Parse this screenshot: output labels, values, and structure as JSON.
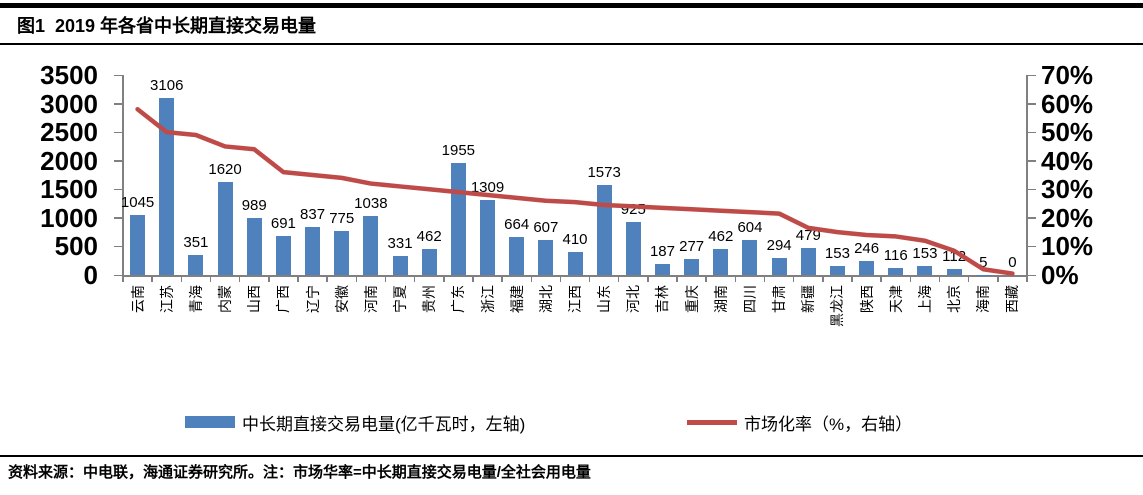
{
  "header": {
    "title": "图1  2019 年各省中长期直接交易电量"
  },
  "legend": {
    "bar_label": "中长期直接交易电量(亿千瓦时，左轴)",
    "line_label": "市场化率（%，右轴）"
  },
  "footer": {
    "text": "资料来源：中电联，海通证券研究所。注：市场华率=中长期直接交易电量/全社会用电量"
  },
  "colors": {
    "bar": "#4F81BD",
    "line": "#BE4B48",
    "axis": "#808080",
    "text": "#000000"
  },
  "chart_data": {
    "type": "bar",
    "subtype": "bar+line combo, dual axis",
    "categories": [
      "云南",
      "江苏",
      "青海",
      "内蒙",
      "山西",
      "广西",
      "辽宁",
      "安徽",
      "河南",
      "宁夏",
      "贵州",
      "广东",
      "浙江",
      "福建",
      "湖北",
      "江西",
      "山东",
      "河北",
      "吉林",
      "重庆",
      "湖南",
      "四川",
      "甘肃",
      "新疆",
      "黑龙江",
      "陕西",
      "天津",
      "上海",
      "北京",
      "海南",
      "西藏"
    ],
    "series": [
      {
        "name": "中长期直接交易电量(亿千瓦时，左轴)",
        "type": "bar",
        "axis": "left",
        "values": [
          1045,
          3106,
          351,
          1620,
          989,
          691,
          837,
          775,
          1038,
          331,
          462,
          1955,
          1309,
          664,
          607,
          410,
          1573,
          925,
          187,
          277,
          462,
          604,
          294,
          479,
          153,
          246,
          116,
          153,
          112,
          5,
          0
        ]
      },
      {
        "name": "市场化率（%，右轴）",
        "type": "line",
        "axis": "right",
        "values_percent": [
          58,
          50,
          49,
          45,
          44,
          36,
          35,
          34,
          32,
          31,
          30,
          29,
          28,
          27,
          26,
          25.5,
          24.5,
          24,
          23.5,
          23,
          22.5,
          22,
          21.5,
          16.5,
          15,
          14,
          13.5,
          12,
          8.5,
          2,
          0.5
        ]
      }
    ],
    "left_axis": {
      "min": 0,
      "max": 3500,
      "step": 500
    },
    "right_axis": {
      "min": 0,
      "max": 70,
      "step": 10,
      "suffix": "%"
    },
    "data_labels": true,
    "grid": false,
    "legend_position": "bottom"
  }
}
